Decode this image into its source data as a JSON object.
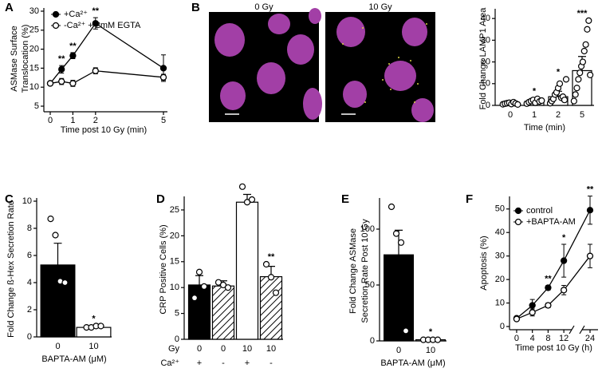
{
  "micrographs": {
    "panel": "B",
    "labels": [
      "0 Gy",
      "10 Gy"
    ]
  },
  "chart_data": [
    {
      "panel": "A",
      "type": "line",
      "ylabel": [
        "ASMase Surface",
        "Translocation (%)"
      ],
      "xlabel": "Time post 10 Gy (min)",
      "x": [
        0,
        0.5,
        1,
        2,
        5
      ],
      "xlim": [
        0,
        5
      ],
      "xticks": [
        0,
        1,
        2,
        5
      ],
      "ylim": [
        5,
        30
      ],
      "yticks": [
        5,
        10,
        15,
        20,
        25,
        30
      ],
      "series": [
        {
          "name": "+Ca²⁺",
          "color": "#000000",
          "marker": "filled",
          "values": [
            11,
            14.7,
            18.3,
            26.8,
            15
          ],
          "errors": [
            0.5,
            1,
            0.8,
            1.5,
            3.5
          ]
        },
        {
          "name": "-Ca²⁺ + 2mM EGTA",
          "color": "#000000",
          "marker": "open",
          "values": [
            11,
            11.5,
            11,
            14.3,
            12.6
          ],
          "errors": [
            0.5,
            0.8,
            0.8,
            0.8,
            0.8
          ]
        }
      ],
      "annotations": [
        {
          "x": 0.5,
          "text": "**"
        },
        {
          "x": 1,
          "text": "**"
        },
        {
          "x": 2,
          "text": "**"
        }
      ],
      "legend": "upper left"
    },
    {
      "type": "bar",
      "ylabel": [
        "Fold Change LAMP1 Area"
      ],
      "xlabel": "Time (min)",
      "categories": [
        "0",
        "1",
        "2",
        "5"
      ],
      "values": [
        1,
        1.8,
        4,
        16
      ],
      "errors": [
        0.3,
        0.6,
        2.5,
        6.5
      ],
      "colors": [
        "#ffffff",
        "#ffffff",
        "#ffffff",
        "#ffffff"
      ],
      "hatch": [
        false,
        false,
        false,
        false
      ],
      "points": [
        [
          0.5,
          0.8,
          1,
          1.2,
          0.6,
          1.5,
          0.9,
          0.4
        ],
        [
          0.8,
          1.5,
          2,
          2.5,
          1.2,
          3,
          1.8,
          2.2
        ],
        [
          1,
          2,
          3,
          5,
          6,
          8,
          10,
          3.5,
          4,
          2.5,
          12
        ],
        [
          2,
          5,
          8,
          12,
          15,
          18,
          20,
          25,
          28,
          35,
          39,
          14
        ]
      ],
      "annotations": [
        null,
        "*",
        "*",
        "***"
      ],
      "ylim": [
        0,
        43
      ],
      "yticks": [
        0,
        10,
        20,
        30,
        40
      ]
    },
    {
      "panel": "C",
      "type": "bar",
      "ylabel": [
        "Fold Change ß-Hex Secretion Rate"
      ],
      "xlabel": "BAPTA-AM (μM)",
      "categories": [
        "0",
        "10"
      ],
      "values": [
        5.3,
        0.7
      ],
      "errors": [
        1.6,
        0.1
      ],
      "colors": [
        "#000000",
        "#ffffff"
      ],
      "hatch": [
        false,
        false
      ],
      "points": [
        [
          8.7,
          7.5,
          4.1,
          4.0
        ],
        [
          0.7,
          0.7,
          0.8,
          0.8
        ]
      ],
      "annotations": [
        null,
        "*"
      ],
      "ylim": [
        0,
        10
      ],
      "yticks": [
        0,
        2,
        4,
        6,
        8,
        10
      ]
    },
    {
      "panel": "D",
      "type": "bar",
      "ylabel": [
        "CRP Positive Cells (%)"
      ],
      "categories": [
        "0",
        "0",
        "10",
        "10"
      ],
      "category_label": "Gy",
      "categories2": [
        "+",
        "-",
        "+",
        "-"
      ],
      "category2_label": "Ca²⁺",
      "values": [
        10.5,
        10.3,
        26.5,
        12.1
      ],
      "errors": [
        1.8,
        1,
        1.5,
        2
      ],
      "colors": [
        "#000000",
        "#000000",
        "#ffffff",
        "#ffffff"
      ],
      "hatch": [
        false,
        true,
        false,
        true
      ],
      "points": [
        [
          8,
          13,
          10.2
        ],
        [
          11,
          10.5,
          10
        ],
        [
          29.5,
          26.5,
          27
        ],
        [
          14.5,
          12,
          9
        ]
      ],
      "annotations": [
        null,
        null,
        null,
        "**"
      ],
      "ylim": [
        0,
        27
      ],
      "yticks": [
        0,
        5,
        10,
        15,
        20,
        25
      ]
    },
    {
      "panel": "E",
      "type": "bar",
      "ylabel": [
        "Fold Change ASMase",
        "Secretion Rate Post 10 Gy"
      ],
      "xlabel": "BAPTA-AM (μM)",
      "categories": [
        "0",
        "10"
      ],
      "values": [
        77,
        1
      ],
      "errors": [
        22,
        0.3
      ],
      "colors": [
        "#000000",
        "#ffffff"
      ],
      "hatch": [
        false,
        false
      ],
      "points": [
        [
          120,
          96,
          88,
          9
        ],
        [
          1,
          1,
          1,
          1
        ]
      ],
      "annotations": [
        null,
        "*"
      ],
      "ylim": [
        0,
        125
      ],
      "yticks": [
        0,
        50,
        100
      ]
    },
    {
      "panel": "F",
      "type": "line",
      "ylabel": [
        "Apoptosis (%)"
      ],
      "xlabel": "Time post 10 Gy (h)",
      "x": [
        0,
        4,
        8,
        12,
        24
      ],
      "xlim": [
        [
          -1,
          14
        ],
        [
          22,
          26
        ]
      ],
      "xticks": [
        0,
        4,
        8,
        12,
        24
      ],
      "ylim": [
        0,
        54
      ],
      "yticks": [
        0,
        10,
        20,
        30,
        40,
        50
      ],
      "series": [
        {
          "name": "control",
          "color": "#000000",
          "marker": "filled",
          "values": [
            3.5,
            9,
            16.5,
            28,
            49.5
          ],
          "errors": [
            0.5,
            2.5,
            1,
            7,
            6
          ]
        },
        {
          "name": "+BAPTA-AM",
          "color": "#000000",
          "marker": "open",
          "values": [
            3.2,
            6,
            9,
            15.5,
            30
          ],
          "errors": [
            0.5,
            1.5,
            1,
            2,
            5
          ]
        }
      ],
      "annotations": [
        {
          "x": 8,
          "text": "**"
        },
        {
          "x": 12,
          "text": "*"
        },
        {
          "x": 24,
          "text": "**"
        }
      ],
      "legend": "upper left"
    }
  ]
}
